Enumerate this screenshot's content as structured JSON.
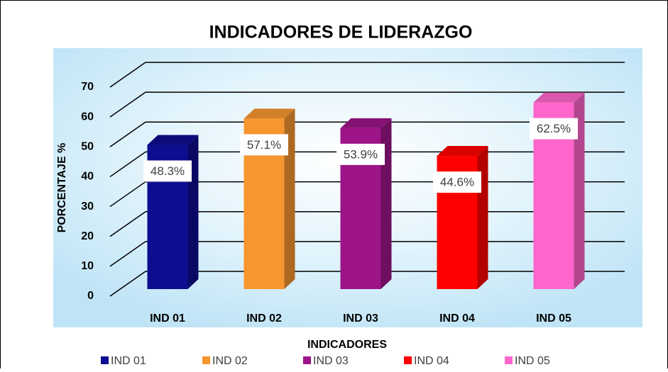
{
  "chart_data": {
    "type": "bar3d",
    "title": "INDICADORES DE LIDERAZGO",
    "x_label": "INDICADORES",
    "y_label": "PORCENTAJE %",
    "categories": [
      "IND 01",
      "IND 02",
      "IND 03",
      "IND 04",
      "IND 05"
    ],
    "values": [
      48.3,
      57.1,
      53.9,
      44.6,
      62.5
    ],
    "value_labels": [
      "48.3%",
      "57.1%",
      "53.9%",
      "44.6%",
      "62.5%"
    ],
    "colors": [
      "#0d0d8f",
      "#f7962f",
      "#9c1488",
      "#ff0000",
      "#ff66cc"
    ],
    "ylim": [
      0,
      70
    ],
    "yticks": [
      0,
      10,
      20,
      30,
      40,
      50,
      60,
      70
    ],
    "grid": true,
    "legend": "bottom"
  }
}
